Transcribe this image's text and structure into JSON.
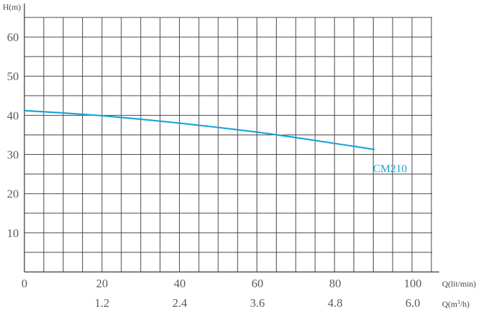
{
  "chart_data": {
    "type": "line",
    "y_axis_label": "H(m)",
    "x_axis_label_primary": "Q(lit/min)",
    "x_axis_label_secondary": "Q(m³/h)",
    "ylim": [
      0,
      65
    ],
    "y_ticks": [
      10,
      20,
      30,
      40,
      50,
      60
    ],
    "xlim": [
      0,
      105
    ],
    "x_ticks_primary": [
      "0",
      "20",
      "40",
      "60",
      "80",
      "100"
    ],
    "x_ticks_primary_values": [
      0,
      20,
      40,
      60,
      80,
      100
    ],
    "x_ticks_secondary": [
      "1.2",
      "2.4",
      "3.6",
      "4.8",
      "6.0"
    ],
    "x_ticks_secondary_values": [
      20,
      40,
      60,
      80,
      100
    ],
    "grid": true,
    "series": [
      {
        "name": "CM210",
        "color": "#1ba3d8",
        "points": [
          {
            "x": 0,
            "y": 41.2
          },
          {
            "x": 10,
            "y": 40.6
          },
          {
            "x": 20,
            "y": 39.9
          },
          {
            "x": 30,
            "y": 39.0
          },
          {
            "x": 40,
            "y": 38.0
          },
          {
            "x": 50,
            "y": 36.9
          },
          {
            "x": 60,
            "y": 35.7
          },
          {
            "x": 70,
            "y": 34.3
          },
          {
            "x": 80,
            "y": 32.8
          },
          {
            "x": 90,
            "y": 31.3
          }
        ]
      }
    ]
  }
}
